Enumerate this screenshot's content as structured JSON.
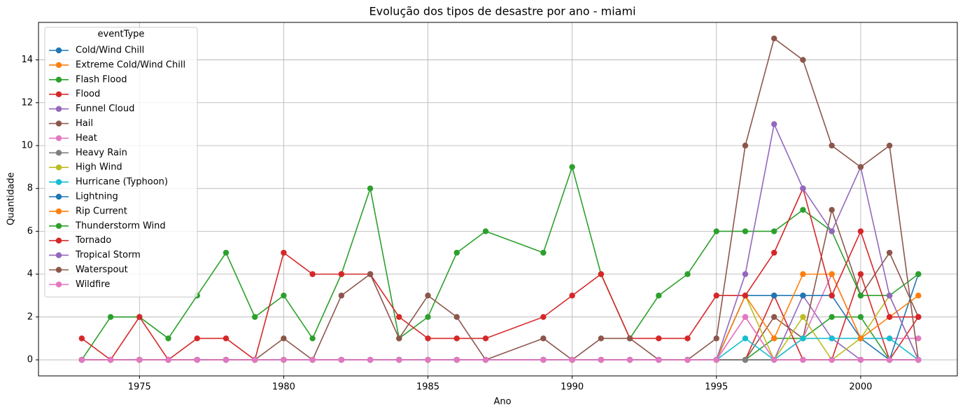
{
  "chart_data": {
    "type": "line",
    "title": "Evolução dos tipos de desastre por ano - miami",
    "x_label": "Ano",
    "y_label": "Quantidade",
    "x": [
      1973,
      1974,
      1975,
      1976,
      1977,
      1978,
      1979,
      1980,
      1981,
      1982,
      1983,
      1984,
      1985,
      1986,
      1987,
      1989,
      1990,
      1991,
      1992,
      1993,
      1994,
      1995,
      1996,
      1997,
      1998,
      1999,
      2000,
      2001,
      2002
    ],
    "xlim": [
      1971.5,
      2003.35
    ],
    "xticks": [
      1975,
      1980,
      1985,
      1990,
      1995,
      2000
    ],
    "ylim": [
      -0.75,
      15.75
    ],
    "yticks": [
      0,
      2,
      4,
      6,
      8,
      10,
      12,
      14
    ],
    "grid": true,
    "legend_title": "eventType",
    "legend_position": "upper-left",
    "series": [
      {
        "name": "Cold/Wind Chill",
        "color": "#1f77b4",
        "values": [
          0,
          0,
          0,
          0,
          0,
          0,
          0,
          0,
          0,
          0,
          0,
          0,
          0,
          0,
          0,
          0,
          0,
          0,
          0,
          0,
          0,
          0,
          0,
          0,
          0,
          0,
          0,
          0,
          0
        ]
      },
      {
        "name": "Extreme Cold/Wind Chill",
        "color": "#ff7f0e",
        "values": [
          0,
          0,
          0,
          0,
          0,
          0,
          0,
          0,
          0,
          0,
          0,
          0,
          0,
          0,
          0,
          0,
          0,
          0,
          0,
          0,
          0,
          0,
          0,
          0,
          0,
          0,
          0,
          0,
          0
        ]
      },
      {
        "name": "Flash Flood",
        "color": "#2ca02c",
        "values": [
          0,
          0,
          0,
          0,
          0,
          0,
          0,
          0,
          0,
          0,
          0,
          0,
          0,
          0,
          0,
          0,
          0,
          0,
          0,
          0,
          0,
          0,
          0,
          1,
          1,
          2,
          2,
          0,
          0
        ]
      },
      {
        "name": "Flood",
        "color": "#d62728",
        "values": [
          0,
          0,
          0,
          0,
          0,
          0,
          0,
          0,
          0,
          0,
          0,
          0,
          0,
          0,
          0,
          0,
          0,
          0,
          0,
          0,
          0,
          0,
          0,
          3,
          0,
          0,
          4,
          0,
          2
        ]
      },
      {
        "name": "Funnel Cloud",
        "color": "#9467bd",
        "values": [
          0,
          0,
          0,
          0,
          0,
          0,
          0,
          0,
          0,
          0,
          0,
          0,
          0,
          0,
          0,
          0,
          0,
          0,
          0,
          0,
          0,
          0,
          0,
          0,
          3,
          1,
          0,
          0,
          0
        ]
      },
      {
        "name": "Hail",
        "color": "#8c564b",
        "values": [
          0,
          0,
          0,
          0,
          0,
          0,
          0,
          0,
          0,
          0,
          0,
          0,
          0,
          0,
          0,
          0,
          0,
          0,
          0,
          0,
          0,
          0,
          0,
          2,
          1,
          7,
          3,
          5,
          2
        ]
      },
      {
        "name": "Heat",
        "color": "#e377c2",
        "values": [
          0,
          0,
          0,
          0,
          0,
          0,
          0,
          0,
          0,
          0,
          0,
          0,
          0,
          0,
          0,
          0,
          0,
          0,
          0,
          0,
          0,
          0,
          2,
          0,
          1,
          4,
          1,
          1,
          1
        ]
      },
      {
        "name": "Heavy Rain",
        "color": "#7f7f7f",
        "values": [
          0,
          0,
          0,
          0,
          0,
          0,
          0,
          0,
          0,
          0,
          0,
          0,
          0,
          0,
          0,
          0,
          0,
          0,
          0,
          0,
          0,
          0,
          0,
          0,
          0,
          0,
          0,
          0,
          0
        ]
      },
      {
        "name": "High Wind",
        "color": "#bcbd22",
        "values": [
          0,
          0,
          0,
          0,
          0,
          0,
          0,
          0,
          0,
          0,
          0,
          0,
          0,
          0,
          0,
          0,
          0,
          0,
          0,
          0,
          0,
          0,
          3,
          0,
          2,
          0,
          1,
          3,
          0
        ]
      },
      {
        "name": "Hurricane (Typhoon)",
        "color": "#17becf",
        "values": [
          0,
          0,
          0,
          0,
          0,
          0,
          0,
          0,
          0,
          0,
          0,
          0,
          0,
          0,
          0,
          0,
          0,
          0,
          0,
          0,
          0,
          0,
          1,
          0,
          1,
          1,
          1,
          1,
          0
        ]
      },
      {
        "name": "Lightning",
        "color": "#1f77b4",
        "values": [
          0,
          0,
          0,
          0,
          0,
          0,
          0,
          0,
          0,
          0,
          0,
          0,
          0,
          0,
          0,
          0,
          0,
          0,
          0,
          0,
          0,
          0,
          3,
          3,
          3,
          3,
          1,
          0,
          4
        ]
      },
      {
        "name": "Rip Current",
        "color": "#ff7f0e",
        "values": [
          0,
          0,
          0,
          0,
          0,
          0,
          0,
          0,
          0,
          0,
          0,
          0,
          0,
          0,
          0,
          0,
          0,
          0,
          0,
          0,
          0,
          0,
          3,
          1,
          4,
          4,
          1,
          2,
          3
        ]
      },
      {
        "name": "Thunderstorm Wind",
        "color": "#2ca02c",
        "values": [
          0,
          2,
          2,
          1,
          3,
          5,
          2,
          3,
          1,
          4,
          8,
          1,
          2,
          5,
          6,
          5,
          9,
          4,
          1,
          3,
          4,
          6,
          6,
          6,
          7,
          6,
          3,
          3,
          4
        ]
      },
      {
        "name": "Tornado",
        "color": "#d62728",
        "values": [
          1,
          0,
          2,
          0,
          1,
          1,
          0,
          5,
          4,
          4,
          4,
          2,
          1,
          1,
          1,
          2,
          3,
          4,
          1,
          1,
          1,
          3,
          3,
          5,
          8,
          3,
          6,
          2,
          2
        ]
      },
      {
        "name": "Tropical Storm",
        "color": "#9467bd",
        "values": [
          0,
          0,
          0,
          0,
          0,
          0,
          0,
          0,
          0,
          0,
          0,
          0,
          0,
          0,
          0,
          0,
          0,
          0,
          0,
          0,
          0,
          0,
          4,
          11,
          8,
          6,
          9,
          3,
          0
        ]
      },
      {
        "name": "Waterspout",
        "color": "#8c564b",
        "values": [
          0,
          0,
          0,
          0,
          0,
          0,
          0,
          1,
          0,
          3,
          4,
          1,
          3,
          2,
          0,
          1,
          0,
          1,
          1,
          0,
          0,
          1,
          10,
          15,
          14,
          10,
          9,
          10,
          0
        ]
      },
      {
        "name": "Wildfire",
        "color": "#e377c2",
        "values": [
          0,
          0,
          0,
          0,
          0,
          0,
          0,
          0,
          0,
          0,
          0,
          0,
          0,
          0,
          0,
          0,
          0,
          0,
          0,
          0,
          0,
          0,
          2,
          0,
          0,
          0,
          0,
          0,
          0
        ]
      }
    ]
  }
}
